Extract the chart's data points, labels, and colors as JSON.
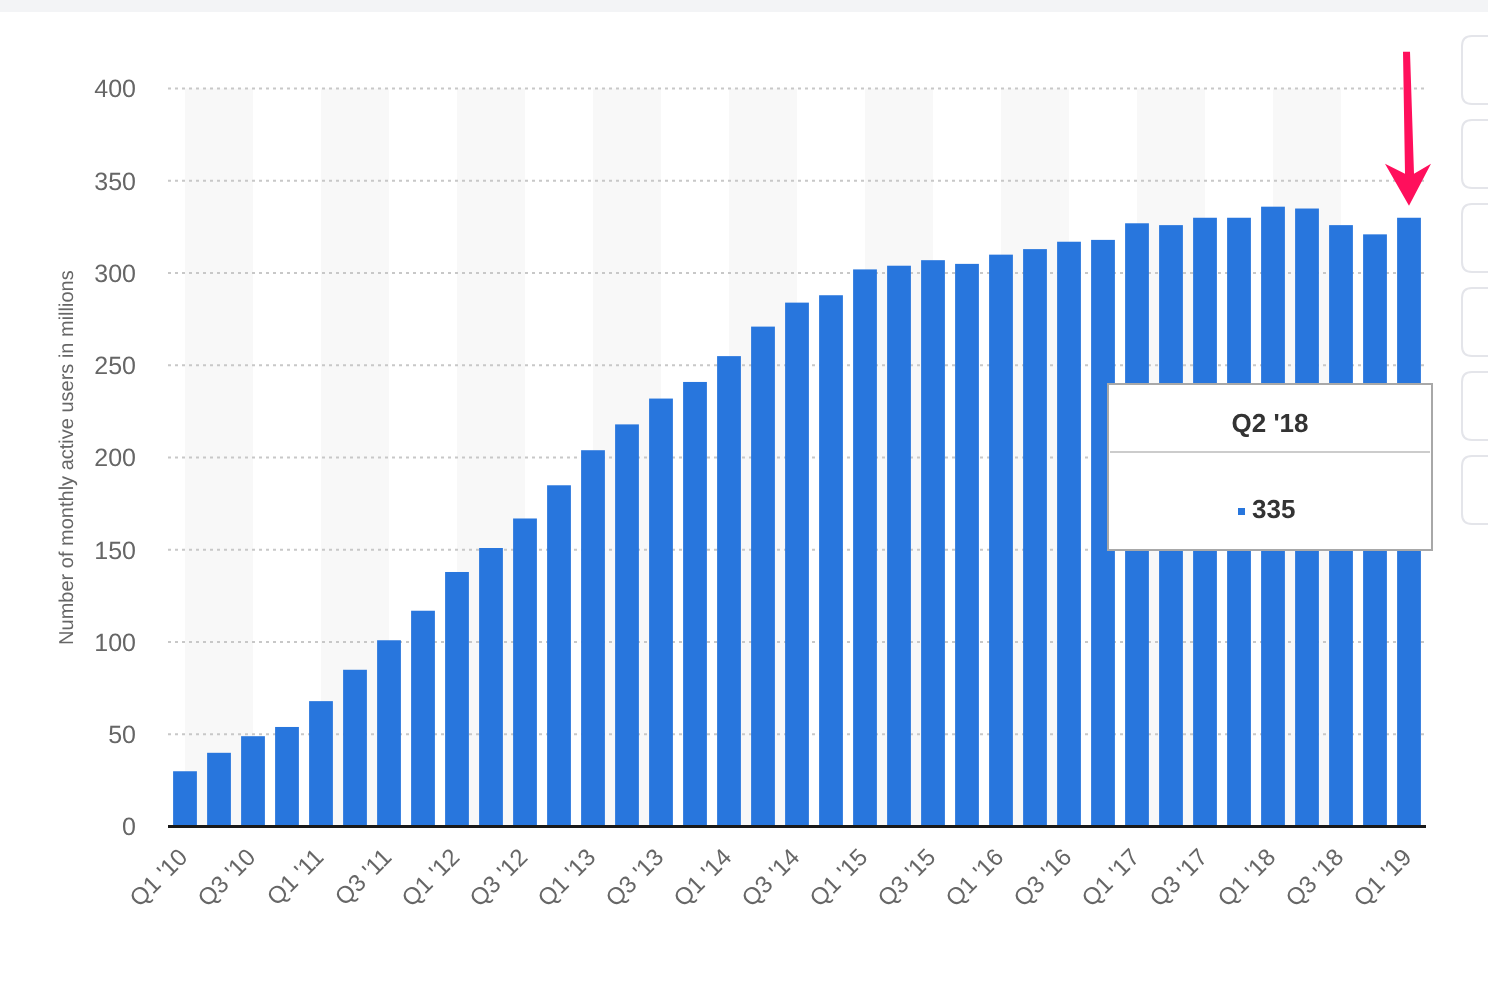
{
  "chart_data": {
    "type": "bar",
    "ylabel": "Number of monthly active users in millions",
    "categories": [
      "Q1 '10",
      null,
      "Q3 '10",
      null,
      "Q1 '11",
      null,
      "Q3 '11",
      null,
      "Q1 '12",
      null,
      "Q3 '12",
      null,
      "Q1 '13",
      null,
      "Q3 '13",
      null,
      "Q1 '14",
      null,
      "Q3 '14",
      null,
      "Q1 '15",
      null,
      "Q3 '15",
      null,
      "Q1 '16",
      null,
      "Q3 '16",
      null,
      "Q1 '17",
      null,
      "Q3 '17",
      null,
      "Q1 '18",
      null,
      "Q3 '18",
      null,
      "Q1 '19"
    ],
    "values": [
      30,
      40,
      49,
      54,
      68,
      85,
      101,
      117,
      138,
      151,
      167,
      185,
      204,
      218,
      232,
      241,
      255,
      271,
      284,
      288,
      302,
      304,
      307,
      305,
      310,
      313,
      317,
      318,
      327,
      326,
      330,
      330,
      336,
      335,
      326,
      321,
      330
    ],
    "color": "#2876dd",
    "ylim": [
      0,
      400
    ],
    "yticks": [
      0,
      50,
      100,
      150,
      200,
      250,
      300,
      350,
      400
    ],
    "grid": "y",
    "bands": [
      {
        "axis": "x",
        "from": "Q1 '10",
        "to": "Q3 '10",
        "color": "#f8f8f8"
      },
      {
        "axis": "x",
        "from": "Q1 '11",
        "to": "Q3 '11",
        "color": "#f8f8f8"
      },
      {
        "axis": "x",
        "from": "Q1 '12",
        "to": "Q3 '12",
        "color": "#f8f8f8"
      },
      {
        "axis": "x",
        "from": "Q1 '13",
        "to": "Q3 '13",
        "color": "#f8f8f8"
      },
      {
        "axis": "x",
        "from": "Q1 '14",
        "to": "Q3 '14",
        "color": "#f8f8f8"
      },
      {
        "axis": "x",
        "from": "Q1 '15",
        "to": "Q3 '15",
        "color": "#f8f8f8"
      },
      {
        "axis": "x",
        "from": "Q1 '16",
        "to": "Q3 '16",
        "color": "#f8f8f8"
      },
      {
        "axis": "x",
        "from": "Q1 '17",
        "to": "Q3 '17",
        "color": "#f8f8f8"
      },
      {
        "axis": "x",
        "from": "Q1 '18",
        "to": "Q3 '18",
        "color": "#f8f8f8"
      }
    ],
    "annotations": [
      "Q2 '18",
      "335"
    ]
  }
}
